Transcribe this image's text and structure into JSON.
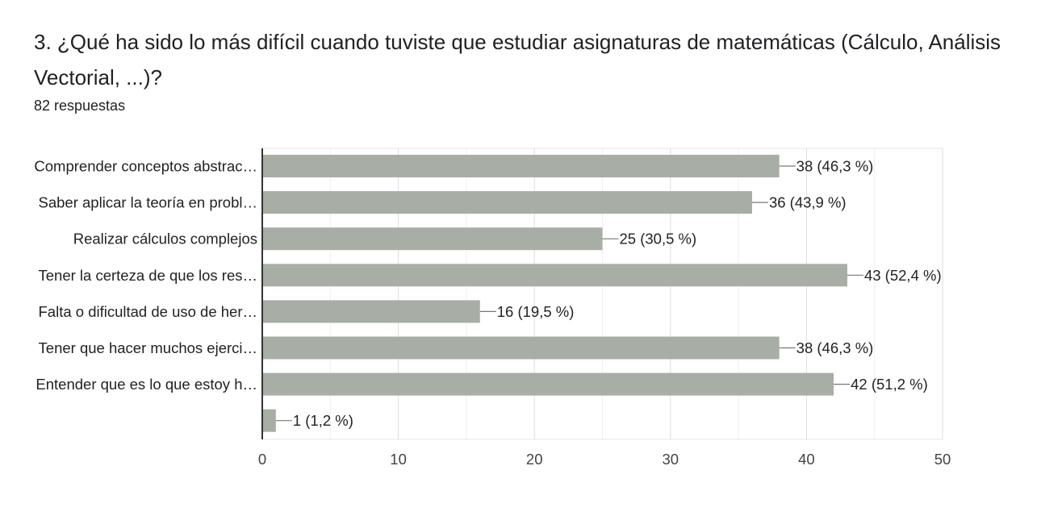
{
  "question": {
    "title": "3. ¿Qué ha sido lo más difícil cuando tuviste que estudiar asignaturas de matemáticas (Cálculo, Análisis Vectorial, ...)?",
    "response_count": "82 respuestas"
  },
  "chart_data": {
    "type": "bar",
    "orientation": "horizontal",
    "categories": [
      "Comprender conceptos abstrac…",
      "Saber aplicar la teoría en probl…",
      "Realizar cálculos complejos",
      "Tener la certeza de que los res…",
      "Falta o dificultad de uso de her…",
      "Tener que hacer muchos ejerci…",
      "Entender que es lo que estoy h…",
      ""
    ],
    "values": [
      38,
      36,
      25,
      43,
      16,
      38,
      42,
      1
    ],
    "value_labels": [
      "38 (46,3 %)",
      "36 (43,9 %)",
      "25 (30,5 %)",
      "43 (52,4 %)",
      "16 (19,5 %)",
      "38 (46,3 %)",
      "42 (51,2 %)",
      "1 (1,2 %)"
    ],
    "xlim": [
      0,
      50
    ],
    "xticks": [
      "0",
      "10",
      "20",
      "30",
      "40",
      "50"
    ],
    "grid": true,
    "bar_color": "#a8aea6",
    "axis_color": "#333333",
    "grid_color": "#e6e6e6"
  }
}
